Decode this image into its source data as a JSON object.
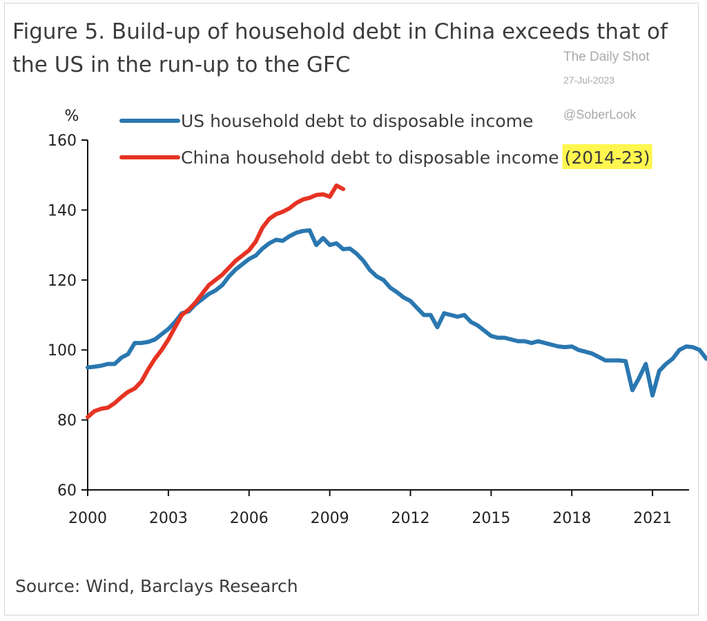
{
  "title": "Figure 5. Build-up of household debt in China exceeds that of the US in the run-up to the GFC",
  "source": "Source: Wind, Barclays Research",
  "watermark": {
    "site": "The Daily Shot",
    "date": "27-Jul-2023",
    "handle": "@SoberLook"
  },
  "colors": {
    "us": "#2a77b0",
    "china": "#e63323",
    "highlight": "#fff64f",
    "axis": "#111111"
  },
  "chart_data": {
    "type": "line",
    "ylabel": "%",
    "xlim": [
      2000,
      2023
    ],
    "ylim": [
      60,
      160
    ],
    "xticks": [
      2000,
      2003,
      2006,
      2009,
      2012,
      2015,
      2018,
      2021
    ],
    "yticks": [
      60,
      80,
      100,
      120,
      140,
      160
    ],
    "grid": false,
    "legend_position": "top",
    "series": [
      {
        "name": "US household debt to disposable income",
        "color": "#2a77b0",
        "points": [
          [
            2000.0,
            95.0
          ],
          [
            2000.25,
            95.2
          ],
          [
            2000.5,
            95.5
          ],
          [
            2000.75,
            96.0
          ],
          [
            2001.0,
            96.0
          ],
          [
            2001.25,
            97.8
          ],
          [
            2001.5,
            98.8
          ],
          [
            2001.75,
            102.0
          ],
          [
            2002.0,
            102.0
          ],
          [
            2002.25,
            102.3
          ],
          [
            2002.5,
            103.0
          ],
          [
            2002.75,
            104.5
          ],
          [
            2003.0,
            106.0
          ],
          [
            2003.25,
            108.0
          ],
          [
            2003.5,
            110.5
          ],
          [
            2003.75,
            111.0
          ],
          [
            2004.0,
            113.0
          ],
          [
            2004.25,
            114.5
          ],
          [
            2004.5,
            116.0
          ],
          [
            2004.75,
            117.0
          ],
          [
            2005.0,
            118.5
          ],
          [
            2005.25,
            121.0
          ],
          [
            2005.5,
            123.0
          ],
          [
            2005.75,
            124.5
          ],
          [
            2006.0,
            126.0
          ],
          [
            2006.25,
            127.0
          ],
          [
            2006.5,
            129.0
          ],
          [
            2006.75,
            130.5
          ],
          [
            2007.0,
            131.5
          ],
          [
            2007.25,
            131.2
          ],
          [
            2007.5,
            132.5
          ],
          [
            2007.75,
            133.5
          ],
          [
            2008.0,
            134.0
          ],
          [
            2008.25,
            134.2
          ],
          [
            2008.5,
            130.0
          ],
          [
            2008.75,
            132.0
          ],
          [
            2009.0,
            130.0
          ],
          [
            2009.25,
            130.5
          ],
          [
            2009.5,
            128.8
          ],
          [
            2009.75,
            129.0
          ],
          [
            2010.0,
            127.5
          ],
          [
            2010.25,
            125.5
          ],
          [
            2010.5,
            122.8
          ],
          [
            2010.75,
            121.0
          ],
          [
            2011.0,
            120.0
          ],
          [
            2011.25,
            117.8
          ],
          [
            2011.5,
            116.5
          ],
          [
            2011.75,
            115.0
          ],
          [
            2012.0,
            114.0
          ],
          [
            2012.25,
            112.0
          ],
          [
            2012.5,
            110.0
          ],
          [
            2012.75,
            110.0
          ],
          [
            2013.0,
            106.5
          ],
          [
            2013.25,
            110.5
          ],
          [
            2013.5,
            110.0
          ],
          [
            2013.75,
            109.5
          ],
          [
            2014.0,
            110.0
          ],
          [
            2014.25,
            108.0
          ],
          [
            2014.5,
            107.0
          ],
          [
            2014.75,
            105.5
          ],
          [
            2015.0,
            104.0
          ],
          [
            2015.25,
            103.5
          ],
          [
            2015.5,
            103.5
          ],
          [
            2015.75,
            103.0
          ],
          [
            2016.0,
            102.5
          ],
          [
            2016.25,
            102.5
          ],
          [
            2016.5,
            102.0
          ],
          [
            2016.75,
            102.5
          ],
          [
            2017.0,
            102.0
          ],
          [
            2017.25,
            101.5
          ],
          [
            2017.5,
            101.0
          ],
          [
            2017.75,
            100.8
          ],
          [
            2018.0,
            101.0
          ],
          [
            2018.25,
            100.0
          ],
          [
            2018.5,
            99.5
          ],
          [
            2018.75,
            99.0
          ],
          [
            2019.0,
            98.0
          ],
          [
            2019.25,
            97.0
          ],
          [
            2019.5,
            97.0
          ],
          [
            2019.75,
            97.0
          ],
          [
            2020.0,
            96.8
          ],
          [
            2020.25,
            88.5
          ],
          [
            2020.5,
            92.0
          ],
          [
            2020.75,
            96.0
          ],
          [
            2021.0,
            87.0
          ],
          [
            2021.25,
            94.0
          ],
          [
            2021.5,
            96.0
          ],
          [
            2021.75,
            97.5
          ],
          [
            2022.0,
            100.0
          ],
          [
            2022.25,
            101.0
          ],
          [
            2022.5,
            100.8
          ],
          [
            2022.75,
            100.0
          ],
          [
            2023.0,
            97.5
          ]
        ]
      },
      {
        "name": "China household debt to disposable income",
        "name_suffix": "(2014-23)",
        "color": "#e63323",
        "points": [
          [
            2000.0,
            80.8
          ],
          [
            2000.25,
            82.5
          ],
          [
            2000.5,
            83.2
          ],
          [
            2000.75,
            83.5
          ],
          [
            2001.0,
            84.8
          ],
          [
            2001.25,
            86.5
          ],
          [
            2001.5,
            88.0
          ],
          [
            2001.75,
            89.0
          ],
          [
            2002.0,
            91.0
          ],
          [
            2002.25,
            94.5
          ],
          [
            2002.5,
            97.5
          ],
          [
            2002.75,
            100.0
          ],
          [
            2003.0,
            103.0
          ],
          [
            2003.25,
            106.5
          ],
          [
            2003.5,
            110.0
          ],
          [
            2003.75,
            111.5
          ],
          [
            2004.0,
            113.5
          ],
          [
            2004.25,
            116.0
          ],
          [
            2004.5,
            118.5
          ],
          [
            2004.75,
            120.0
          ],
          [
            2005.0,
            121.5
          ],
          [
            2005.25,
            123.5
          ],
          [
            2005.5,
            125.5
          ],
          [
            2005.75,
            127.0
          ],
          [
            2006.0,
            128.5
          ],
          [
            2006.25,
            131.0
          ],
          [
            2006.5,
            135.0
          ],
          [
            2006.75,
            137.5
          ],
          [
            2007.0,
            138.8
          ],
          [
            2007.25,
            139.5
          ],
          [
            2007.5,
            140.5
          ],
          [
            2007.75,
            142.0
          ],
          [
            2008.0,
            143.0
          ],
          [
            2008.25,
            143.5
          ],
          [
            2008.5,
            144.3
          ],
          [
            2008.75,
            144.5
          ],
          [
            2009.0,
            143.8
          ],
          [
            2009.25,
            147.0
          ],
          [
            2009.5,
            146.0
          ]
        ]
      }
    ]
  }
}
